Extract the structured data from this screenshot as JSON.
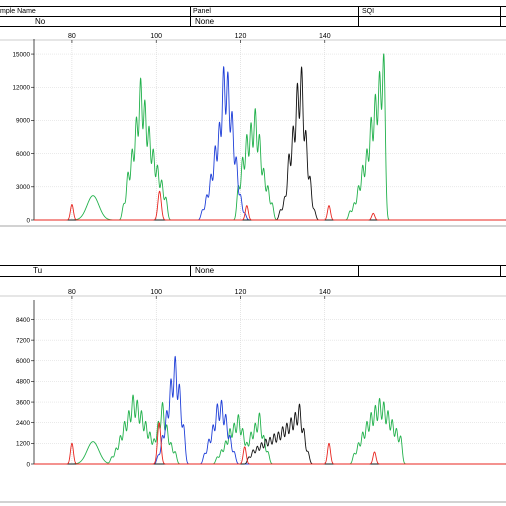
{
  "table1": {
    "headers": [
      "mple Name",
      "Panel",
      "SQI"
    ],
    "values": [
      "No",
      "None",
      ""
    ]
  },
  "table2": {
    "values": [
      "Tu",
      "None",
      ""
    ]
  },
  "chart_data": [
    {
      "type": "line",
      "title": "",
      "xlabel": "",
      "ylabel": "",
      "x_ticks": [
        80,
        100,
        120,
        140
      ],
      "xlim": [
        71,
        183
      ],
      "y_ticks": [
        0,
        3000,
        6000,
        9000,
        12000,
        15000
      ],
      "y_tick_labels": [
        "0",
        "3000",
        "6000",
        "9000",
        "12000",
        "15000"
      ],
      "ylim": [
        0,
        16000
      ],
      "grid": true,
      "colors": {
        "green": "#22b14c",
        "blue": "#1f3fd8",
        "black": "#111111",
        "red": "#e8251f"
      },
      "series": [
        {
          "color": "green",
          "peaks": [
            [
              85,
              2200,
              1.4
            ],
            [
              92.3,
              1400,
              0.35
            ],
            [
              93.3,
              4200,
              0.35
            ],
            [
              94.3,
              6200,
              0.35
            ],
            [
              95.3,
              9000,
              0.35
            ],
            [
              96.3,
              12500,
              0.35
            ],
            [
              97.3,
              10500,
              0.35
            ],
            [
              98.3,
              8200,
              0.35
            ],
            [
              99.3,
              6200,
              0.35
            ],
            [
              100.3,
              4800,
              0.35
            ],
            [
              101.3,
              3500,
              0.35
            ],
            [
              102.3,
              2000,
              0.35
            ],
            [
              119.5,
              3000,
              0.35
            ],
            [
              120.5,
              5500,
              0.35
            ],
            [
              121.5,
              7500,
              0.35
            ],
            [
              122.5,
              8500,
              0.35
            ],
            [
              123.5,
              9800,
              0.35
            ],
            [
              124.5,
              7500,
              0.35
            ],
            [
              125.5,
              4500,
              0.35
            ],
            [
              126.5,
              3000,
              0.35
            ],
            [
              127.5,
              1500,
              0.35
            ],
            [
              146,
              800,
              0.35
            ],
            [
              147,
              1500,
              0.35
            ],
            [
              148,
              3000,
              0.35
            ],
            [
              149,
              4800,
              0.35
            ],
            [
              150,
              6200,
              0.35
            ],
            [
              151,
              9000,
              0.35
            ],
            [
              152,
              11000,
              0.35
            ],
            [
              153,
              13000,
              0.35
            ],
            [
              154,
              14800,
              0.35
            ]
          ]
        },
        {
          "color": "blue",
          "peaks": [
            [
              111,
              900,
              0.35
            ],
            [
              112,
              2200,
              0.35
            ],
            [
              113,
              4000,
              0.35
            ],
            [
              114,
              6500,
              0.35
            ],
            [
              115,
              8500,
              0.35
            ],
            [
              116,
              13500,
              0.35
            ],
            [
              117,
              13000,
              0.35
            ],
            [
              118,
              9500,
              0.35
            ],
            [
              119,
              5500,
              0.35
            ],
            [
              120,
              2200,
              0.35
            ],
            [
              121,
              600,
              0.35
            ]
          ]
        },
        {
          "color": "black",
          "peaks": [
            [
              129.5,
              900,
              0.35
            ],
            [
              130.5,
              2000,
              0.35
            ],
            [
              131.5,
              5800,
              0.35
            ],
            [
              132.5,
              8200,
              0.35
            ],
            [
              133.5,
              12000,
              0.35
            ],
            [
              134.5,
              13500,
              0.35
            ],
            [
              135.5,
              7800,
              0.35
            ],
            [
              136.5,
              3800,
              0.35
            ],
            [
              137.5,
              900,
              0.35
            ]
          ]
        },
        {
          "color": "red",
          "peaks": [
            [
              80,
              1400,
              0.35
            ],
            [
              100.8,
              2600,
              0.4
            ],
            [
              121.5,
              1300,
              0.35
            ],
            [
              141,
              1300,
              0.35
            ],
            [
              151.5,
              600,
              0.35
            ]
          ]
        }
      ]
    },
    {
      "type": "line",
      "title": "",
      "xlabel": "",
      "ylabel": "",
      "x_ticks": [
        80,
        100,
        120,
        140
      ],
      "xlim": [
        71,
        183
      ],
      "y_ticks": [
        0,
        1200,
        2400,
        3600,
        4800,
        6000,
        7200,
        8400
      ],
      "y_tick_labels": [
        "0",
        "1200",
        "2400",
        "3600",
        "4800",
        "6000",
        "7200",
        "8400"
      ],
      "ylim": [
        0,
        9300
      ],
      "grid": true,
      "colors": {
        "green": "#22b14c",
        "blue": "#1f3fd8",
        "black": "#111111",
        "red": "#e8251f"
      },
      "series": [
        {
          "color": "green",
          "peaks": [
            [
              85,
              1300,
              1.4
            ],
            [
              89.5,
              400,
              0.35
            ],
            [
              90.5,
              900,
              0.35
            ],
            [
              91.5,
              1600,
              0.35
            ],
            [
              92.5,
              2400,
              0.35
            ],
            [
              93.5,
              3000,
              0.35
            ],
            [
              94.5,
              3900,
              0.35
            ],
            [
              95.5,
              3600,
              0.35
            ],
            [
              96.5,
              3000,
              0.35
            ],
            [
              97.5,
              2400,
              0.35
            ],
            [
              98.5,
              1800,
              0.35
            ],
            [
              99.5,
              1400,
              0.35
            ],
            [
              100.5,
              2400,
              0.35
            ],
            [
              101.5,
              3500,
              0.35
            ],
            [
              102.5,
              2200,
              0.35
            ],
            [
              103.5,
              1200,
              0.35
            ],
            [
              104.5,
              700,
              0.35
            ],
            [
              114.5,
              400,
              0.35
            ],
            [
              115.5,
              800,
              0.35
            ],
            [
              116.5,
              1300,
              0.35
            ],
            [
              117.5,
              2000,
              0.35
            ],
            [
              118.5,
              2300,
              0.35
            ],
            [
              119.5,
              2800,
              0.35
            ],
            [
              120.5,
              2000,
              0.35
            ],
            [
              121.5,
              1200,
              0.35
            ],
            [
              122.5,
              1800,
              0.35
            ],
            [
              123.5,
              2300,
              0.35
            ],
            [
              124.5,
              2900,
              0.35
            ],
            [
              125.5,
              1600,
              0.35
            ],
            [
              126.5,
              700,
              0.35
            ],
            [
              147,
              600,
              0.35
            ],
            [
              148,
              1200,
              0.35
            ],
            [
              149,
              1800,
              0.35
            ],
            [
              150,
              2400,
              0.35
            ],
            [
              151,
              2900,
              0.35
            ],
            [
              152,
              3300,
              0.35
            ],
            [
              153,
              3700,
              0.35
            ],
            [
              154,
              3500,
              0.35
            ],
            [
              155,
              3000,
              0.35
            ],
            [
              156,
              2500,
              0.35
            ],
            [
              157,
              2000,
              0.35
            ],
            [
              158,
              1600,
              0.35
            ]
          ]
        },
        {
          "color": "blue",
          "peaks": [
            [
              100.5,
              500,
              0.35
            ],
            [
              101.5,
              1600,
              0.35
            ],
            [
              102.5,
              3000,
              0.35
            ],
            [
              103.5,
              4800,
              0.35
            ],
            [
              104.5,
              6100,
              0.35
            ],
            [
              105.5,
              4500,
              0.35
            ],
            [
              106.5,
              2200,
              0.35
            ],
            [
              111.5,
              600,
              0.35
            ],
            [
              112.5,
              1400,
              0.35
            ],
            [
              113.5,
              2200,
              0.35
            ],
            [
              114.5,
              3400,
              0.35
            ],
            [
              115.5,
              3600,
              0.35
            ],
            [
              116.5,
              2800,
              0.35
            ],
            [
              117.5,
              1600,
              0.35
            ],
            [
              118.5,
              700,
              0.35
            ]
          ]
        },
        {
          "color": "black",
          "peaks": [
            [
              122,
              400,
              0.35
            ],
            [
              123,
              800,
              0.35
            ],
            [
              124,
              1000,
              0.35
            ],
            [
              125,
              1200,
              0.35
            ],
            [
              126,
              1400,
              0.35
            ],
            [
              127,
              1500,
              0.35
            ],
            [
              128,
              1700,
              0.35
            ],
            [
              129,
              1800,
              0.35
            ],
            [
              130,
              2100,
              0.35
            ],
            [
              131,
              2300,
              0.35
            ],
            [
              132,
              2600,
              0.35
            ],
            [
              133,
              2900,
              0.35
            ],
            [
              134,
              3400,
              0.35
            ],
            [
              135,
              2000,
              0.35
            ],
            [
              136,
              700,
              0.35
            ]
          ]
        },
        {
          "color": "red",
          "peaks": [
            [
              80,
              1200,
              0.35
            ],
            [
              100.7,
              2400,
              0.4
            ],
            [
              121,
              1000,
              0.35
            ],
            [
              141,
              1200,
              0.35
            ],
            [
              151.8,
              700,
              0.35
            ]
          ]
        }
      ]
    }
  ]
}
